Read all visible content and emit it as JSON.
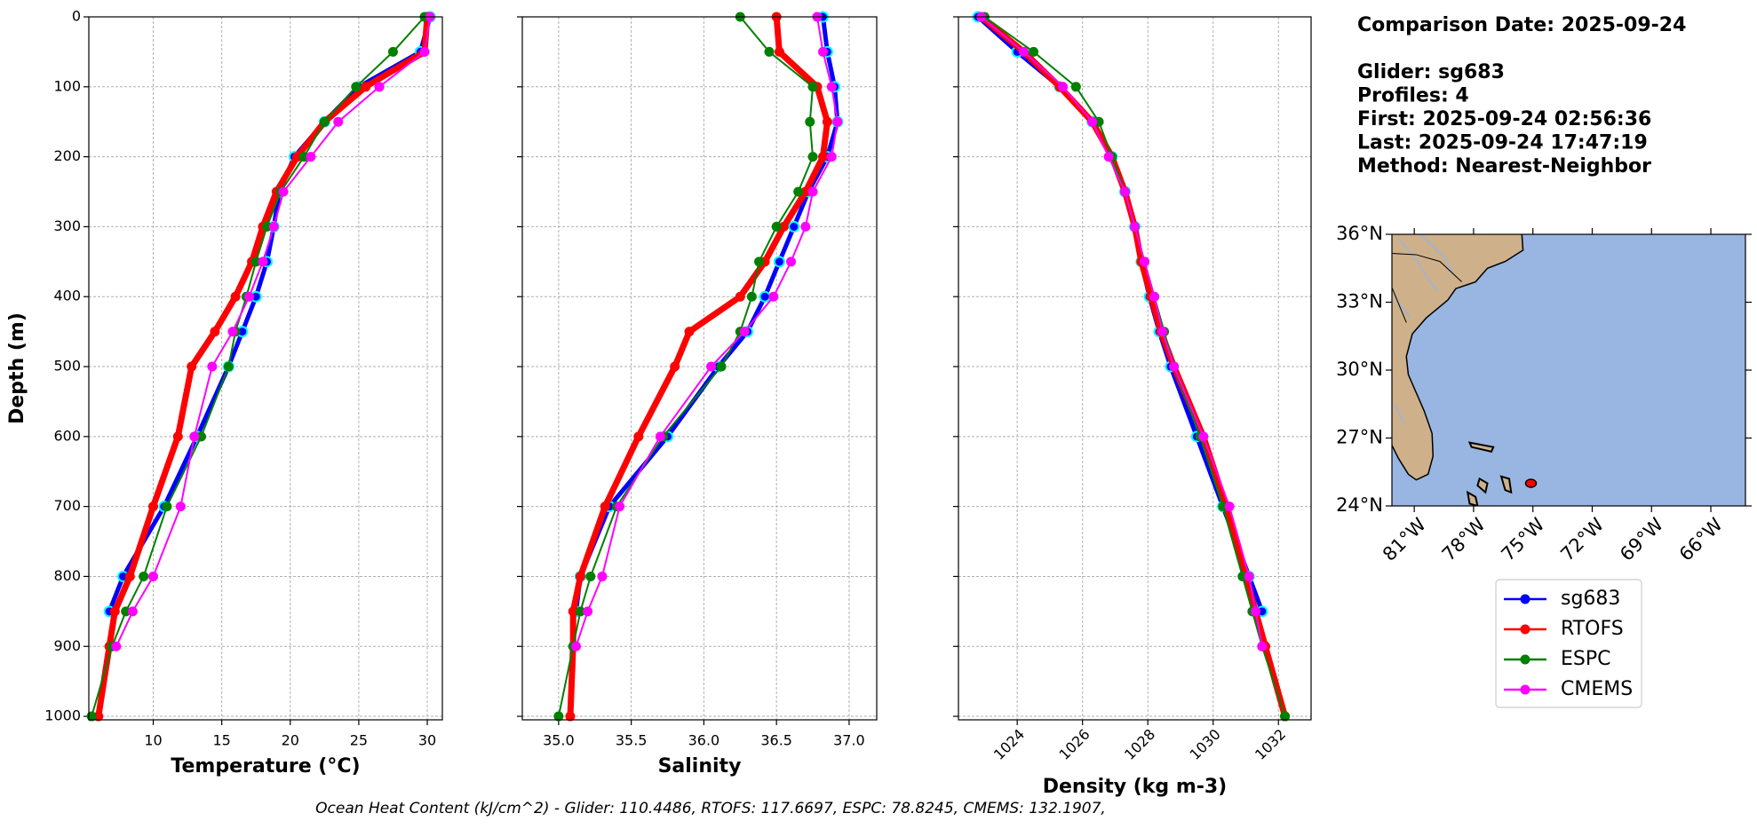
{
  "info": [
    "Comparison Date: 2025-09-24",
    "Glider: sg683",
    "Profiles: 4",
    "First: 2025-09-24 02:56:36",
    "Last: 2025-09-24 17:47:19",
    "Method: Nearest-Neighbor"
  ],
  "footer": "Ocean Heat Content (kJ/cm^2) - Glider: 110.4486,  RTOFS: 117.6697,  ESPC: 78.8245,  CMEMS: 132.1907,",
  "chart_data": [
    {
      "type": "line",
      "xlabel": "Temperature (°C)",
      "ylabel": "Depth (m)",
      "grid": true,
      "xlim": [
        5.3,
        31.1
      ],
      "xticks": [
        10,
        15,
        20,
        25,
        30
      ],
      "ylim": [
        1005,
        0
      ],
      "yticks": [
        0,
        100,
        200,
        300,
        400,
        500,
        600,
        700,
        800,
        900,
        1000
      ],
      "depth": [
        0,
        50,
        100,
        150,
        200,
        250,
        300,
        350,
        400,
        450,
        500,
        600,
        700,
        800,
        850,
        900,
        1000
      ],
      "series": [
        {
          "name": "sg683",
          "color": "#0000ff",
          "markeredgecolor": "#00ffff",
          "linewidth": 5,
          "values": [
            30.2,
            29.5,
            25.0,
            22.5,
            20.3,
            19.2,
            18.8,
            18.3,
            17.5,
            16.5,
            15.5,
            13.2,
            10.8,
            7.8,
            6.8,
            null,
            null
          ]
        },
        {
          "name": "RTOFS",
          "color": "#ff0000",
          "linewidth": 7,
          "values": [
            30.0,
            29.8,
            25.5,
            22.5,
            20.5,
            19.0,
            18.0,
            17.2,
            16.0,
            14.5,
            12.8,
            11.8,
            10.0,
            8.3,
            7.2,
            6.8,
            6.0
          ]
        },
        {
          "name": "ESPC",
          "color": "#008000",
          "linewidth": 2,
          "values": [
            29.8,
            27.5,
            24.8,
            22.5,
            21.0,
            19.3,
            18.3,
            17.5,
            16.8,
            16.0,
            15.5,
            13.5,
            11.0,
            9.3,
            8.0,
            7.0,
            5.5
          ]
        },
        {
          "name": "CMEMS",
          "color": "#ff00ff",
          "linewidth": 2,
          "values": [
            30.2,
            29.8,
            26.5,
            23.5,
            21.5,
            19.5,
            18.8,
            18.0,
            17.0,
            15.8,
            14.3,
            13.0,
            12.0,
            10.0,
            8.5,
            7.3,
            null
          ]
        }
      ]
    },
    {
      "type": "line",
      "xlabel": "Salinity",
      "grid": true,
      "xlim": [
        34.75,
        37.19
      ],
      "xticks": [
        {
          "value": 35,
          "label": "35.0"
        },
        35.5,
        {
          "value": 36,
          "label": "36.0"
        },
        36.5,
        {
          "value": 37,
          "label": "37.0"
        }
      ],
      "ylim": [
        1005,
        0
      ],
      "yticks": [
        0,
        100,
        200,
        300,
        400,
        500,
        600,
        700,
        800,
        900,
        1000
      ],
      "depth": [
        0,
        50,
        100,
        150,
        200,
        250,
        300,
        350,
        400,
        450,
        500,
        600,
        700,
        800,
        850,
        900,
        1000
      ],
      "series": [
        {
          "name": "sg683",
          "color": "#0000ff",
          "markeredgecolor": "#00ffff",
          "linewidth": 5,
          "values": [
            36.82,
            36.85,
            36.9,
            36.92,
            36.85,
            36.72,
            36.62,
            36.52,
            36.42,
            36.3,
            36.1,
            35.75,
            35.35,
            35.15,
            35.12,
            null,
            null
          ]
        },
        {
          "name": "RTOFS",
          "color": "#ff0000",
          "linewidth": 7,
          "values": [
            36.5,
            36.52,
            36.78,
            36.85,
            36.82,
            36.7,
            36.55,
            36.42,
            36.25,
            35.9,
            35.8,
            35.55,
            35.32,
            35.15,
            35.1,
            35.1,
            35.08
          ]
        },
        {
          "name": "ESPC",
          "color": "#008000",
          "linewidth": 2,
          "values": [
            36.25,
            36.45,
            36.75,
            36.73,
            36.75,
            36.65,
            36.5,
            36.38,
            36.33,
            36.25,
            36.12,
            35.72,
            35.4,
            35.22,
            35.15,
            35.1,
            35.0
          ]
        },
        {
          "name": "CMEMS",
          "color": "#ff00ff",
          "linewidth": 2,
          "values": [
            36.78,
            36.82,
            36.88,
            36.92,
            36.88,
            36.75,
            36.7,
            36.6,
            36.48,
            36.28,
            36.05,
            35.7,
            35.42,
            35.3,
            35.2,
            35.12,
            null
          ]
        }
      ]
    },
    {
      "type": "line",
      "xlabel": "Density (kg m-3)",
      "grid": true,
      "xtick_rotation": 45,
      "xlim": [
        1022.2,
        1033.0
      ],
      "xticks": [
        1024,
        1026,
        1028,
        1030,
        1032
      ],
      "ylim": [
        1005,
        0
      ],
      "yticks": [
        0,
        100,
        200,
        300,
        400,
        500,
        600,
        700,
        800,
        900,
        1000
      ],
      "depth": [
        0,
        50,
        100,
        150,
        200,
        250,
        300,
        350,
        400,
        450,
        500,
        600,
        700,
        800,
        850,
        900,
        1000
      ],
      "series": [
        {
          "name": "sg683",
          "color": "#0000ff",
          "markeredgecolor": "#00ffff",
          "linewidth": 5,
          "values": [
            1022.8,
            1024.0,
            1025.3,
            1026.3,
            1026.9,
            1027.3,
            1027.6,
            1027.8,
            1028.05,
            1028.35,
            1028.7,
            1029.5,
            1030.3,
            1031.1,
            1031.5,
            null,
            null
          ]
        },
        {
          "name": "RTOFS",
          "color": "#ff0000",
          "linewidth": 7,
          "values": [
            1022.9,
            1024.2,
            1025.3,
            1026.3,
            1026.9,
            1027.3,
            1027.6,
            1027.8,
            1028.1,
            1028.4,
            1028.8,
            1029.7,
            1030.4,
            1031.0,
            1031.3,
            1031.6,
            1032.2
          ]
        },
        {
          "name": "ESPC",
          "color": "#008000",
          "linewidth": 2,
          "values": [
            1023.0,
            1024.5,
            1025.8,
            1026.5,
            1026.9,
            1027.3,
            1027.6,
            1027.9,
            1028.2,
            1028.5,
            1028.8,
            1029.6,
            1030.3,
            1030.9,
            1031.2,
            1031.5,
            1032.2
          ]
        },
        {
          "name": "CMEMS",
          "color": "#ff00ff",
          "linewidth": 2,
          "values": [
            1022.9,
            1024.2,
            1025.4,
            1026.3,
            1026.8,
            1027.3,
            1027.6,
            1027.9,
            1028.2,
            1028.45,
            1028.8,
            1029.7,
            1030.5,
            1031.1,
            1031.3,
            1031.5,
            null
          ]
        }
      ]
    },
    {
      "type": "map",
      "xlim": [
        -82.13,
        -64.25
      ],
      "ylim": [
        24,
        36
      ],
      "xticks": [
        {
          "value": -81,
          "label": "81°W"
        },
        {
          "value": -78,
          "label": "78°W"
        },
        {
          "value": -75,
          "label": "75°W"
        },
        {
          "value": -72,
          "label": "72°W"
        },
        {
          "value": -69,
          "label": "69°W"
        },
        {
          "value": -66,
          "label": "66°W"
        }
      ],
      "yticks": [
        {
          "value": 24,
          "label": "24°N"
        },
        {
          "value": 27,
          "label": "27°N"
        },
        {
          "value": 30,
          "label": "30°N"
        },
        {
          "value": 33,
          "label": "33°N"
        },
        {
          "value": 36,
          "label": "36°N"
        }
      ],
      "x": [
        -75.1
      ],
      "values": [
        25.0
      ],
      "color": "#ff0000"
    }
  ]
}
